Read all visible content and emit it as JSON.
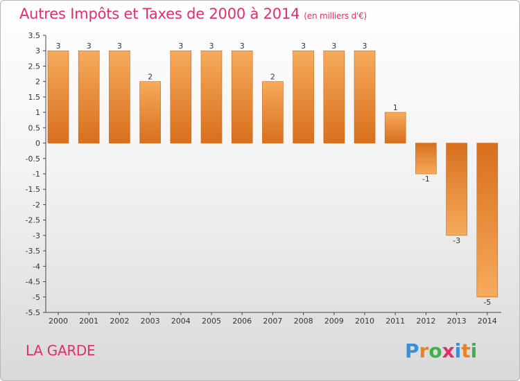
{
  "chart_data": {
    "type": "bar",
    "title": "Autres Impôts et Taxes de 2000 à 2014",
    "subtitle": "(en milliers d'€)",
    "categories": [
      "2000",
      "2001",
      "2002",
      "2003",
      "2004",
      "2005",
      "2006",
      "2007",
      "2008",
      "2009",
      "2010",
      "2011",
      "2012",
      "2013",
      "2014"
    ],
    "values": [
      3,
      3,
      3,
      2,
      3,
      3,
      3,
      2,
      3,
      3,
      3,
      1,
      -1,
      -3,
      -5
    ],
    "ylim": [
      -5.5,
      3.5
    ],
    "yticks": [
      "3.5",
      "3",
      "2.5",
      "2",
      "1.5",
      "1",
      "0.5",
      "0",
      "-0.5",
      "-1",
      "-1.5",
      "-2",
      "-2.5",
      "-3",
      "-3.5",
      "-4",
      "-4.5",
      "-5",
      "-5.5"
    ],
    "xlabel": "",
    "ylabel": "",
    "grid": false,
    "bar_color": "#e8822a",
    "bar_highlight": "#f6ab5c"
  },
  "footer": {
    "commune": "LA GARDE",
    "logo_letters": [
      "P",
      "r",
      "o",
      "x",
      "i",
      "t",
      "i"
    ],
    "logo_colors": [
      "#3a8fd8",
      "#e8822a",
      "#3cb34a",
      "#e0306a",
      "#3a8fd8",
      "#e8822a",
      "#3cb34a"
    ]
  }
}
